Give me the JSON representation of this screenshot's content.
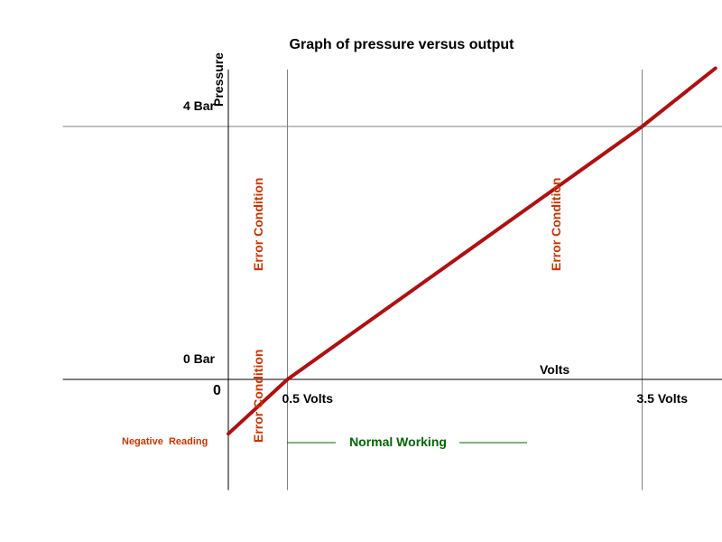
{
  "chart_data": {
    "type": "line",
    "title": "Graph of pressure versus output",
    "ylabel": "Pressure",
    "xlabel": "Volts",
    "origin_label": "0",
    "x_ticks": [
      {
        "value": 0.5,
        "label": "0.5 Volts"
      },
      {
        "value": 3.5,
        "label": "3.5 Volts"
      }
    ],
    "y_ticks": [
      {
        "value": 0,
        "label": "0 Bar"
      },
      {
        "value": 4,
        "label": "4 Bar"
      }
    ],
    "series": [
      {
        "x": [
          0,
          0.5,
          3.5,
          4.12
        ],
        "y": [
          -0.86,
          0,
          4,
          4.92
        ]
      }
    ],
    "xlim": [
      -1.4,
      4.2
    ],
    "ylim": [
      -1.75,
      4.9
    ],
    "annotations": {
      "error_low": "Error Condition",
      "error_low_2": "Error Condition",
      "error_high": "Error Condition",
      "negative": "Negative  Reading",
      "normal": "Normal Working"
    },
    "colors": {
      "line": "#b01010",
      "error": "#cc3300",
      "normal": "#006600",
      "grid": "#808080"
    }
  }
}
